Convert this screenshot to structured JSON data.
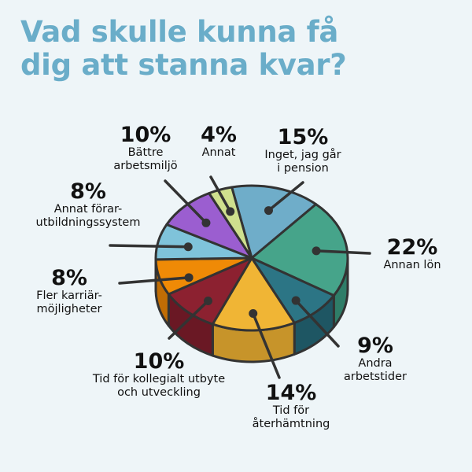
{
  "page": {
    "title_lines": [
      "Vad skulle kunna få",
      "dig att stanna kvar?"
    ]
  },
  "chart_data": {
    "type": "pie",
    "unit": "%",
    "slices": [
      {
        "value": 15,
        "label_pct": "15%",
        "label_lines": [
          "Inget, jag går",
          "i pension"
        ],
        "color": "#6fadc9",
        "side_color": "#4e8aa6"
      },
      {
        "value": 22,
        "label_pct": "22%",
        "label_lines": [
          "Annan lön"
        ],
        "color": "#46a48a",
        "side_color": "#2f7d68"
      },
      {
        "value": 9,
        "label_pct": "9%",
        "label_lines": [
          "Andra",
          "arbetstider"
        ],
        "color": "#2c7585",
        "side_color": "#1e5663"
      },
      {
        "value": 14,
        "label_pct": "14%",
        "label_lines": [
          "Tid för",
          "återhämtning"
        ],
        "color": "#f0b535",
        "side_color": "#c7942a"
      },
      {
        "value": 10,
        "label_pct": "10%",
        "label_lines": [
          "Tid för kollegialt utbyte",
          "och utveckling"
        ],
        "color": "#8c2130",
        "side_color": "#6a1824"
      },
      {
        "value": 8,
        "label_pct": "8%",
        "label_lines": [
          "Fler karriär-",
          "möjligheter"
        ],
        "color": "#ef8a06",
        "side_color": "#c06d05"
      },
      {
        "value": 8,
        "label_pct": "8%",
        "label_lines": [
          "Annat förar-",
          "utbildningssystem"
        ],
        "color": "#7fc3da",
        "side_color": "#5ea0b8"
      },
      {
        "value": 10,
        "label_pct": "10%",
        "label_lines": [
          "Bättre",
          "arbetsmiljö"
        ],
        "color": "#9b5ed0",
        "side_color": "#7a45aa"
      },
      {
        "value": 4,
        "label_pct": "4%",
        "label_lines": [
          "Annat"
        ],
        "color": "#cfe08e",
        "side_color": "#a9b86f"
      }
    ],
    "colors": {
      "outline": "#333333",
      "text": "#111111",
      "title": "#6aadc9",
      "background": "#eef5f8"
    }
  }
}
